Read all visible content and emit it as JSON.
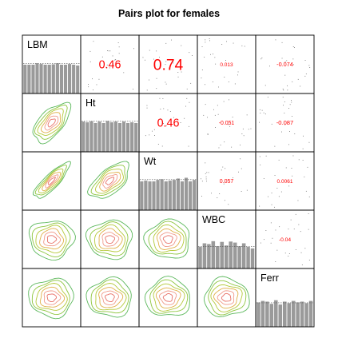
{
  "chart_data": {
    "type": "pairs",
    "title": "Pairs plot for females",
    "variables": [
      "LBM",
      "Ht",
      "Wt",
      "WBC",
      "Ferr"
    ],
    "upper_panels": [
      {
        "row": "LBM",
        "col": "Ht",
        "value": "0.46"
      },
      {
        "row": "LBM",
        "col": "Wt",
        "value": "0.74"
      },
      {
        "row": "LBM",
        "col": "WBC",
        "value": "0.013"
      },
      {
        "row": "LBM",
        "col": "Ferr",
        "value": "-0.074"
      },
      {
        "row": "Ht",
        "col": "Wt",
        "value": "0.46"
      },
      {
        "row": "Ht",
        "col": "WBC",
        "value": "-0.051"
      },
      {
        "row": "Ht",
        "col": "Ferr",
        "value": "-0.087"
      },
      {
        "row": "Wt",
        "col": "WBC",
        "value": "0.057"
      },
      {
        "row": "Wt",
        "col": "Ferr",
        "value": "0.0061"
      },
      {
        "row": "WBC",
        "col": "Ferr",
        "value": "-0.04"
      }
    ],
    "diagonal_histograms": {
      "LBM": [
        0.8,
        0.8,
        0.8,
        0.84,
        0.82,
        0.8,
        0.8,
        0.81,
        0.84,
        0.8,
        0.8,
        0.82,
        0.8,
        0.78
      ],
      "Ht": [
        0.84,
        0.82,
        0.85,
        0.8,
        0.84,
        0.8,
        0.86,
        0.82,
        0.84,
        0.8,
        0.84,
        0.8,
        0.82,
        0.8
      ],
      "Wt": [
        0.8,
        0.82,
        0.8,
        0.8,
        0.84,
        0.86,
        0.8,
        0.82,
        0.84,
        0.88,
        0.8,
        0.9,
        0.8,
        0.84
      ],
      "WBC": [
        0.6,
        0.7,
        0.68,
        0.76,
        0.62,
        0.74,
        0.64,
        0.75,
        0.72,
        0.62,
        0.7,
        0.6,
        0.56
      ],
      "Ferr": [
        0.68,
        0.72,
        0.7,
        0.64,
        0.74,
        0.62,
        0.7,
        0.66,
        0.72,
        0.68,
        0.7,
        0.66,
        0.72
      ]
    },
    "lower_panels": "bivariate density contours",
    "contour_colors": [
      "#5cb85c",
      "#8ec63f",
      "#b5c93b",
      "#e0b04a",
      "#f09a8a",
      "#e8726a"
    ]
  }
}
